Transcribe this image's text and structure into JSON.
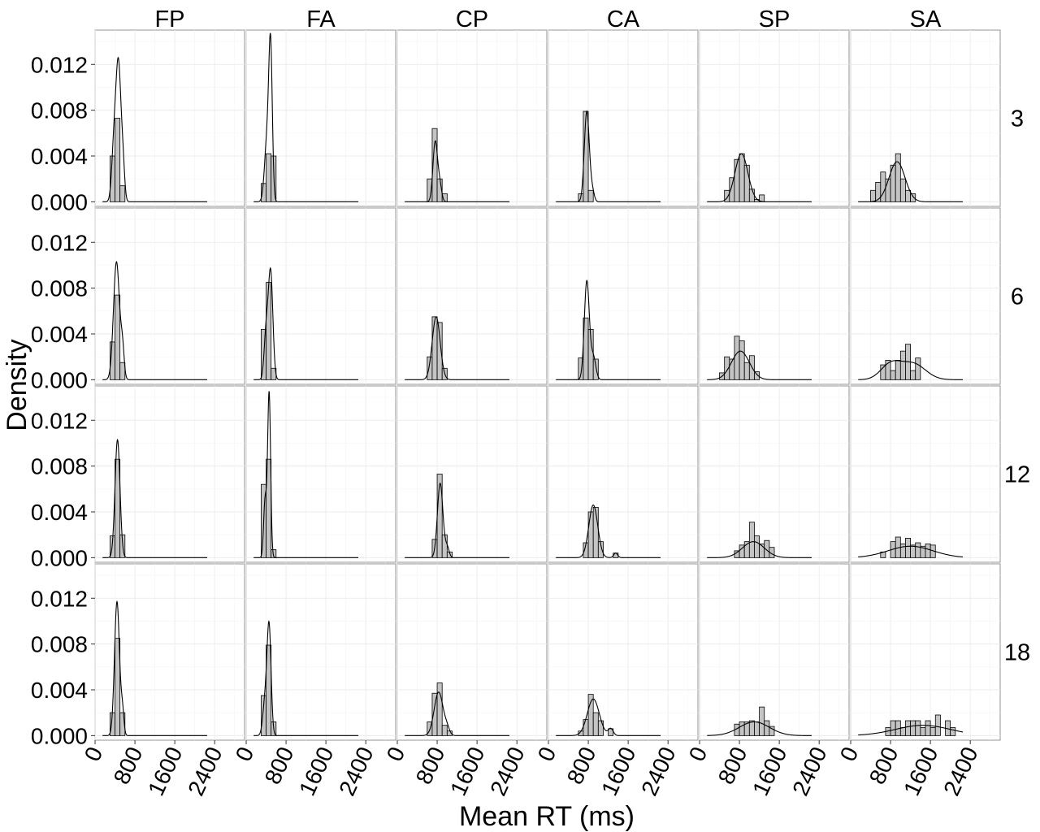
{
  "chart_data": {
    "type": "histogram-density-facet",
    "title": "",
    "xlabel": "Mean RT (ms)",
    "ylabel": "Density",
    "columns": [
      "FP",
      "FA",
      "CP",
      "CA",
      "SP",
      "SA"
    ],
    "rows": [
      "3",
      "6",
      "12",
      "18"
    ],
    "x_ticks": [
      0,
      800,
      1600,
      2400
    ],
    "y_ticks": [
      0.0,
      0.004,
      0.008,
      0.012
    ],
    "y_tick_labels": [
      "0.000",
      "0.004",
      "0.008",
      "0.012"
    ],
    "xlim": [
      0,
      3000
    ],
    "ylim": [
      -0.0004,
      0.015
    ],
    "density_line_range": [
      150,
      2250
    ],
    "bin_width": 100,
    "panels": [
      {
        "row": "3",
        "col": "FP",
        "bins": [
          [
            350,
            0.004
          ],
          [
            450,
            0.0073
          ],
          [
            550,
            0.0014
          ]
        ],
        "peaks": [
          [
            380,
            0.0047,
            45
          ],
          [
            470,
            0.0118,
            50
          ],
          [
            560,
            0.0028,
            35
          ]
        ]
      },
      {
        "row": "3",
        "col": "FA",
        "bins": [
          [
            350,
            0.0016
          ],
          [
            450,
            0.0042
          ],
          [
            550,
            0.004
          ]
        ],
        "peaks": [
          [
            420,
            0.0055,
            50
          ],
          [
            490,
            0.0125,
            35
          ]
        ]
      },
      {
        "row": "3",
        "col": "CP",
        "bins": [
          [
            650,
            0.002
          ],
          [
            750,
            0.0064
          ],
          [
            850,
            0.002
          ],
          [
            950,
            0.0007
          ]
        ],
        "peaks": [
          [
            760,
            0.0052,
            45
          ],
          [
            850,
            0.0015,
            40
          ]
        ]
      },
      {
        "row": "3",
        "col": "CA",
        "bins": [
          [
            650,
            0.0007
          ],
          [
            750,
            0.0079
          ],
          [
            850,
            0.001
          ]
        ],
        "peaks": [
          [
            770,
            0.0079,
            50
          ],
          [
            880,
            0.0009,
            40
          ]
        ]
      },
      {
        "row": "3",
        "col": "SP",
        "bins": [
          [
            550,
            0.001
          ],
          [
            650,
            0.0021
          ],
          [
            750,
            0.0037
          ],
          [
            850,
            0.0042
          ],
          [
            950,
            0.0032
          ],
          [
            1050,
            0.0011
          ],
          [
            1150,
            0.0002
          ],
          [
            1250,
            0.0006
          ]
        ],
        "peaks": [
          [
            840,
            0.0042,
            130
          ]
        ]
      },
      {
        "row": "3",
        "col": "SA",
        "bins": [
          [
            450,
            0.001
          ],
          [
            550,
            0.0017
          ],
          [
            650,
            0.0026
          ],
          [
            750,
            0.002
          ],
          [
            850,
            0.0032
          ],
          [
            950,
            0.0042
          ],
          [
            1050,
            0.002
          ],
          [
            1150,
            0.001
          ],
          [
            1250,
            0.0007
          ]
        ],
        "peaks": [
          [
            930,
            0.0035,
            160
          ]
        ]
      },
      {
        "row": "6",
        "col": "FP",
        "bins": [
          [
            350,
            0.0033
          ],
          [
            450,
            0.0074
          ],
          [
            550,
            0.0015
          ]
        ],
        "peaks": [
          [
            430,
            0.0103,
            60
          ],
          [
            550,
            0.0025,
            35
          ]
        ]
      },
      {
        "row": "6",
        "col": "FA",
        "bins": [
          [
            350,
            0.0044
          ],
          [
            450,
            0.0085
          ],
          [
            550,
            0.001
          ]
        ],
        "peaks": [
          [
            400,
            0.004,
            40
          ],
          [
            490,
            0.0094,
            45
          ]
        ]
      },
      {
        "row": "6",
        "col": "CP",
        "bins": [
          [
            650,
            0.002
          ],
          [
            750,
            0.0055
          ],
          [
            850,
            0.005
          ],
          [
            950,
            0.001
          ]
        ],
        "peaks": [
          [
            780,
            0.0055,
            80
          ]
        ]
      },
      {
        "row": "6",
        "col": "CA",
        "bins": [
          [
            650,
            0.0019
          ],
          [
            750,
            0.0054
          ],
          [
            850,
            0.0044
          ],
          [
            950,
            0.0018
          ]
        ],
        "peaks": [
          [
            770,
            0.0086,
            50
          ],
          [
            900,
            0.002,
            50
          ]
        ]
      },
      {
        "row": "6",
        "col": "SP",
        "bins": [
          [
            450,
            0.0006
          ],
          [
            550,
            0.002
          ],
          [
            650,
            0.0018
          ],
          [
            750,
            0.0038
          ],
          [
            850,
            0.0034
          ],
          [
            950,
            0.0015
          ],
          [
            1050,
            0.0021
          ],
          [
            1150,
            0.0007
          ]
        ],
        "peaks": [
          [
            820,
            0.0025,
            180
          ]
        ]
      },
      {
        "row": "6",
        "col": "SA",
        "bins": [
          [
            650,
            0.0013
          ],
          [
            750,
            0.0017
          ],
          [
            850,
            0.0008
          ],
          [
            950,
            0.0017
          ],
          [
            1050,
            0.0025
          ],
          [
            1150,
            0.0031
          ],
          [
            1250,
            0.0008
          ],
          [
            1350,
            0.0019
          ]
        ],
        "peaks": [
          [
            800,
            0.0013,
            200
          ],
          [
            1250,
            0.0014,
            250
          ]
        ]
      },
      {
        "row": "12",
        "col": "FP",
        "bins": [
          [
            350,
            0.0019
          ],
          [
            450,
            0.0086
          ],
          [
            550,
            0.002
          ]
        ],
        "peaks": [
          [
            450,
            0.0103,
            50
          ]
        ]
      },
      {
        "row": "12",
        "col": "FA",
        "bins": [
          [
            350,
            0.0064
          ],
          [
            450,
            0.0086
          ],
          [
            550,
            0.0007
          ]
        ],
        "peaks": [
          [
            380,
            0.005,
            30
          ],
          [
            460,
            0.0144,
            30
          ]
        ]
      },
      {
        "row": "12",
        "col": "CP",
        "bins": [
          [
            750,
            0.0016
          ],
          [
            850,
            0.0073
          ],
          [
            950,
            0.002
          ],
          [
            1050,
            0.0005
          ]
        ],
        "peaks": [
          [
            860,
            0.0065,
            55
          ],
          [
            1000,
            0.0009,
            40
          ]
        ]
      },
      {
        "row": "12",
        "col": "CA",
        "bins": [
          [
            750,
            0.0013
          ],
          [
            850,
            0.004
          ],
          [
            950,
            0.0044
          ],
          [
            1050,
            0.0014
          ],
          [
            1350,
            0.0004
          ]
        ],
        "peaks": [
          [
            900,
            0.0046,
            90
          ],
          [
            1350,
            0.0004,
            40
          ]
        ]
      },
      {
        "row": "12",
        "col": "SP",
        "bins": [
          [
            750,
            0.0006
          ],
          [
            850,
            0.0011
          ],
          [
            950,
            0.0014
          ],
          [
            1050,
            0.0031
          ],
          [
            1150,
            0.0019
          ],
          [
            1250,
            0.0012
          ],
          [
            1350,
            0.0015
          ],
          [
            1450,
            0.0009
          ]
        ],
        "peaks": [
          [
            1080,
            0.0014,
            220
          ]
        ]
      },
      {
        "row": "12",
        "col": "SA",
        "bins": [
          [
            650,
            0.0005
          ],
          [
            850,
            0.0014
          ],
          [
            950,
            0.0018
          ],
          [
            1050,
            0.0012
          ],
          [
            1150,
            0.0017
          ],
          [
            1250,
            0.0011
          ],
          [
            1350,
            0.0013
          ],
          [
            1450,
            0.001
          ],
          [
            1550,
            0.0012
          ],
          [
            1650,
            0.0011
          ]
        ],
        "peaks": [
          [
            1200,
            0.001,
            450
          ]
        ]
      },
      {
        "row": "18",
        "col": "FP",
        "bins": [
          [
            350,
            0.002
          ],
          [
            450,
            0.0085
          ],
          [
            550,
            0.002
          ]
        ],
        "peaks": [
          [
            440,
            0.0117,
            50
          ],
          [
            550,
            0.002,
            30
          ]
        ]
      },
      {
        "row": "18",
        "col": "FA",
        "bins": [
          [
            350,
            0.0035
          ],
          [
            450,
            0.0079
          ],
          [
            550,
            0.0012
          ]
        ],
        "peaks": [
          [
            380,
            0.003,
            45
          ],
          [
            460,
            0.0093,
            40
          ]
        ]
      },
      {
        "row": "18",
        "col": "CP",
        "bins": [
          [
            650,
            0.0012
          ],
          [
            750,
            0.0037
          ],
          [
            850,
            0.0046
          ],
          [
            950,
            0.0009
          ],
          [
            1050,
            0.0004
          ]
        ],
        "peaks": [
          [
            830,
            0.0038,
            90
          ],
          [
            1000,
            0.0005,
            50
          ]
        ]
      },
      {
        "row": "18",
        "col": "CA",
        "bins": [
          [
            650,
            0.0004
          ],
          [
            750,
            0.0014
          ],
          [
            850,
            0.0036
          ],
          [
            950,
            0.002
          ],
          [
            1050,
            0.0013
          ],
          [
            1250,
            0.0006
          ]
        ],
        "peaks": [
          [
            900,
            0.0032,
            120
          ],
          [
            1250,
            0.0006,
            50
          ]
        ]
      },
      {
        "row": "18",
        "col": "SP",
        "bins": [
          [
            750,
            0.001
          ],
          [
            850,
            0.0012
          ],
          [
            950,
            0.0012
          ],
          [
            1050,
            0.0013
          ],
          [
            1150,
            0.0012
          ],
          [
            1250,
            0.0025
          ],
          [
            1350,
            0.0013
          ],
          [
            1450,
            0.0008
          ]
        ],
        "peaks": [
          [
            1100,
            0.0012,
            300
          ]
        ]
      },
      {
        "row": "18",
        "col": "SA",
        "bins": [
          [
            750,
            0.0007
          ],
          [
            850,
            0.0013
          ],
          [
            950,
            0.0013
          ],
          [
            1050,
            0.0007
          ],
          [
            1150,
            0.0013
          ],
          [
            1250,
            0.0013
          ],
          [
            1350,
            0.0013
          ],
          [
            1450,
            0.0007
          ],
          [
            1550,
            0.0013
          ],
          [
            1650,
            0.0007
          ],
          [
            1750,
            0.0018
          ],
          [
            1950,
            0.0013
          ],
          [
            2050,
            0.0007
          ]
        ],
        "peaks": [
          [
            1450,
            0.0009,
            550
          ]
        ]
      }
    ],
    "grid": true,
    "legend": "none"
  }
}
